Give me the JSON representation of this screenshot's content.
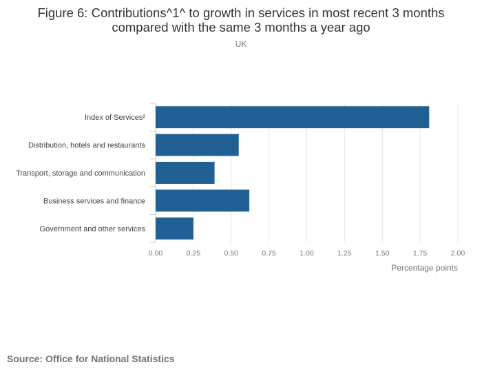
{
  "chart_data": {
    "type": "bar",
    "orientation": "horizontal",
    "title": "Figure 6: Contributions^1^ to growth in services in most recent 3 months compared with the same 3 months a year ago",
    "subtitle": "UK",
    "categories": [
      "Index of Services²",
      "Distribution, hotels and restaurants",
      "Transport, storage and communication",
      "Business services and finance",
      "Government and other services"
    ],
    "values": [
      1.81,
      0.55,
      0.39,
      0.62,
      0.25
    ],
    "xlabel": "Percentage points",
    "ylabel": "",
    "xlim": [
      0,
      2.0
    ],
    "x_ticks": [
      "0.00",
      "0.25",
      "0.50",
      "0.75",
      "1.00",
      "1.25",
      "1.50",
      "1.75",
      "2.00"
    ],
    "grid": true,
    "bar_color": "#206095",
    "source": "Source: Office for National Statistics"
  }
}
